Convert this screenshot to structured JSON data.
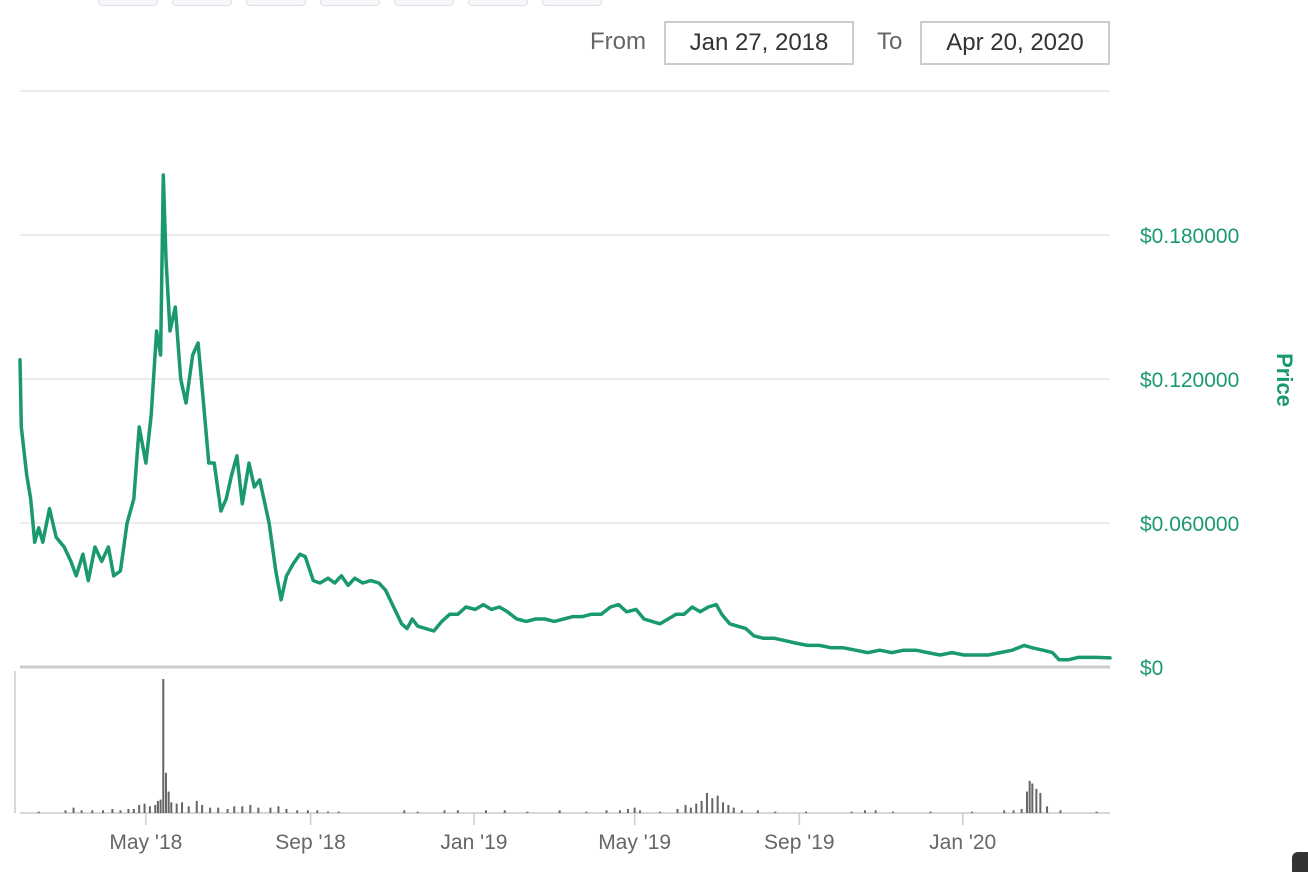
{
  "range_selector": {
    "from_label": "From",
    "from_value": "Jan 27, 2018",
    "to_label": "To",
    "to_value": "Apr 20, 2020"
  },
  "chart_data": {
    "type": "line",
    "title": "",
    "ylabel": "Price",
    "xlabel": "",
    "ylim": [
      0,
      0.24
    ],
    "y_ticks": [
      {
        "value": 0,
        "label": "$0"
      },
      {
        "value": 0.06,
        "label": "$0.060000"
      },
      {
        "value": 0.12,
        "label": "$0.120000"
      },
      {
        "value": 0.18,
        "label": "$0.180000"
      }
    ],
    "x_ticks": [
      {
        "date": "2018-05-01",
        "label": "May '18"
      },
      {
        "date": "2018-09-01",
        "label": "Sep '18"
      },
      {
        "date": "2019-01-01",
        "label": "Jan '19"
      },
      {
        "date": "2019-05-01",
        "label": "May '19"
      },
      {
        "date": "2019-09-01",
        "label": "Sep '19"
      },
      {
        "date": "2020-01-01",
        "label": "Jan '20"
      }
    ],
    "x_range": [
      "2018-01-27",
      "2020-04-20"
    ],
    "grid": true,
    "series_color": "#1a9a6c",
    "volume_color": "#666666",
    "series": [
      {
        "values": [
          [
            "2018-01-27",
            0.128
          ],
          [
            "2018-01-28",
            0.1
          ],
          [
            "2018-02-01",
            0.08
          ],
          [
            "2018-02-04",
            0.07
          ],
          [
            "2018-02-07",
            0.052
          ],
          [
            "2018-02-10",
            0.058
          ],
          [
            "2018-02-13",
            0.052
          ],
          [
            "2018-02-18",
            0.066
          ],
          [
            "2018-02-23",
            0.054
          ],
          [
            "2018-03-01",
            0.05
          ],
          [
            "2018-03-06",
            0.044
          ],
          [
            "2018-03-10",
            0.038
          ],
          [
            "2018-03-15",
            0.047
          ],
          [
            "2018-03-19",
            0.036
          ],
          [
            "2018-03-24",
            0.05
          ],
          [
            "2018-03-29",
            0.044
          ],
          [
            "2018-04-03",
            0.05
          ],
          [
            "2018-04-07",
            0.038
          ],
          [
            "2018-04-12",
            0.04
          ],
          [
            "2018-04-17",
            0.06
          ],
          [
            "2018-04-22",
            0.07
          ],
          [
            "2018-04-26",
            0.1
          ],
          [
            "2018-05-01",
            0.085
          ],
          [
            "2018-05-05",
            0.105
          ],
          [
            "2018-05-09",
            0.14
          ],
          [
            "2018-05-12",
            0.13
          ],
          [
            "2018-05-14",
            0.205
          ],
          [
            "2018-05-16",
            0.17
          ],
          [
            "2018-05-19",
            0.14
          ],
          [
            "2018-05-23",
            0.15
          ],
          [
            "2018-05-27",
            0.12
          ],
          [
            "2018-05-31",
            0.11
          ],
          [
            "2018-06-05",
            0.13
          ],
          [
            "2018-06-09",
            0.135
          ],
          [
            "2018-06-13",
            0.11
          ],
          [
            "2018-06-17",
            0.085
          ],
          [
            "2018-06-21",
            0.085
          ],
          [
            "2018-06-26",
            0.065
          ],
          [
            "2018-06-30",
            0.07
          ],
          [
            "2018-07-04",
            0.08
          ],
          [
            "2018-07-08",
            0.088
          ],
          [
            "2018-07-12",
            0.068
          ],
          [
            "2018-07-17",
            0.085
          ],
          [
            "2018-07-21",
            0.075
          ],
          [
            "2018-07-25",
            0.078
          ],
          [
            "2018-08-01",
            0.06
          ],
          [
            "2018-08-06",
            0.04
          ],
          [
            "2018-08-10",
            0.028
          ],
          [
            "2018-08-14",
            0.038
          ],
          [
            "2018-08-19",
            0.043
          ],
          [
            "2018-08-24",
            0.047
          ],
          [
            "2018-08-28",
            0.046
          ],
          [
            "2018-09-03",
            0.036
          ],
          [
            "2018-09-08",
            0.035
          ],
          [
            "2018-09-14",
            0.037
          ],
          [
            "2018-09-19",
            0.035
          ],
          [
            "2018-09-24",
            0.038
          ],
          [
            "2018-09-29",
            0.034
          ],
          [
            "2018-10-04",
            0.037
          ],
          [
            "2018-10-10",
            0.035
          ],
          [
            "2018-10-16",
            0.036
          ],
          [
            "2018-10-22",
            0.035
          ],
          [
            "2018-10-27",
            0.032
          ],
          [
            "2018-11-02",
            0.025
          ],
          [
            "2018-11-08",
            0.018
          ],
          [
            "2018-11-12",
            0.016
          ],
          [
            "2018-11-16",
            0.02
          ],
          [
            "2018-11-20",
            0.017
          ],
          [
            "2018-11-26",
            0.016
          ],
          [
            "2018-12-02",
            0.015
          ],
          [
            "2018-12-08",
            0.019
          ],
          [
            "2018-12-14",
            0.022
          ],
          [
            "2018-12-20",
            0.022
          ],
          [
            "2018-12-26",
            0.025
          ],
          [
            "2019-01-02",
            0.024
          ],
          [
            "2019-01-08",
            0.026
          ],
          [
            "2019-01-14",
            0.024
          ],
          [
            "2019-01-20",
            0.025
          ],
          [
            "2019-01-26",
            0.023
          ],
          [
            "2019-02-02",
            0.02
          ],
          [
            "2019-02-09",
            0.019
          ],
          [
            "2019-02-16",
            0.02
          ],
          [
            "2019-02-23",
            0.02
          ],
          [
            "2019-03-02",
            0.019
          ],
          [
            "2019-03-09",
            0.02
          ],
          [
            "2019-03-16",
            0.021
          ],
          [
            "2019-03-23",
            0.021
          ],
          [
            "2019-03-30",
            0.022
          ],
          [
            "2019-04-06",
            0.022
          ],
          [
            "2019-04-13",
            0.025
          ],
          [
            "2019-04-19",
            0.026
          ],
          [
            "2019-04-25",
            0.023
          ],
          [
            "2019-05-02",
            0.024
          ],
          [
            "2019-05-08",
            0.02
          ],
          [
            "2019-05-14",
            0.019
          ],
          [
            "2019-05-20",
            0.018
          ],
          [
            "2019-05-26",
            0.02
          ],
          [
            "2019-06-01",
            0.022
          ],
          [
            "2019-06-07",
            0.022
          ],
          [
            "2019-06-13",
            0.025
          ],
          [
            "2019-06-19",
            0.023
          ],
          [
            "2019-06-25",
            0.025
          ],
          [
            "2019-07-01",
            0.026
          ],
          [
            "2019-07-05",
            0.022
          ],
          [
            "2019-07-11",
            0.018
          ],
          [
            "2019-07-17",
            0.017
          ],
          [
            "2019-07-23",
            0.016
          ],
          [
            "2019-07-29",
            0.013
          ],
          [
            "2019-08-05",
            0.012
          ],
          [
            "2019-08-13",
            0.012
          ],
          [
            "2019-08-21",
            0.011
          ],
          [
            "2019-08-29",
            0.01
          ],
          [
            "2019-09-07",
            0.009
          ],
          [
            "2019-09-16",
            0.009
          ],
          [
            "2019-09-25",
            0.008
          ],
          [
            "2019-10-04",
            0.008
          ],
          [
            "2019-10-13",
            0.007
          ],
          [
            "2019-10-22",
            0.006
          ],
          [
            "2019-10-31",
            0.007
          ],
          [
            "2019-11-09",
            0.006
          ],
          [
            "2019-11-18",
            0.007
          ],
          [
            "2019-11-27",
            0.007
          ],
          [
            "2019-12-06",
            0.006
          ],
          [
            "2019-12-15",
            0.005
          ],
          [
            "2019-12-24",
            0.006
          ],
          [
            "2020-01-02",
            0.005
          ],
          [
            "2020-01-11",
            0.005
          ],
          [
            "2020-01-20",
            0.005
          ],
          [
            "2020-01-29",
            0.006
          ],
          [
            "2020-02-07",
            0.007
          ],
          [
            "2020-02-16",
            0.009
          ],
          [
            "2020-02-22",
            0.008
          ],
          [
            "2020-03-01",
            0.007
          ],
          [
            "2020-03-08",
            0.006
          ],
          [
            "2020-03-13",
            0.003
          ],
          [
            "2020-03-20",
            0.003
          ],
          [
            "2020-03-27",
            0.004
          ],
          [
            "2020-04-03",
            0.004
          ],
          [
            "2020-04-10",
            0.004
          ],
          [
            "2020-04-20",
            0.0038
          ]
        ]
      }
    ],
    "volume": [
      [
        "2018-02-10",
        0.01
      ],
      [
        "2018-03-02",
        0.02
      ],
      [
        "2018-03-08",
        0.04
      ],
      [
        "2018-03-14",
        0.02
      ],
      [
        "2018-03-22",
        0.02
      ],
      [
        "2018-03-30",
        0.02
      ],
      [
        "2018-04-06",
        0.03
      ],
      [
        "2018-04-12",
        0.02
      ],
      [
        "2018-04-18",
        0.03
      ],
      [
        "2018-04-22",
        0.03
      ],
      [
        "2018-04-26",
        0.06
      ],
      [
        "2018-04-30",
        0.07
      ],
      [
        "2018-05-04",
        0.05
      ],
      [
        "2018-05-08",
        0.06
      ],
      [
        "2018-05-10",
        0.09
      ],
      [
        "2018-05-12",
        0.1
      ],
      [
        "2018-05-14",
        1.0
      ],
      [
        "2018-05-16",
        0.3
      ],
      [
        "2018-05-18",
        0.16
      ],
      [
        "2018-05-20",
        0.08
      ],
      [
        "2018-05-24",
        0.07
      ],
      [
        "2018-05-28",
        0.08
      ],
      [
        "2018-06-02",
        0.05
      ],
      [
        "2018-06-08",
        0.09
      ],
      [
        "2018-06-12",
        0.06
      ],
      [
        "2018-06-18",
        0.04
      ],
      [
        "2018-06-24",
        0.04
      ],
      [
        "2018-07-01",
        0.03
      ],
      [
        "2018-07-06",
        0.05
      ],
      [
        "2018-07-12",
        0.05
      ],
      [
        "2018-07-18",
        0.06
      ],
      [
        "2018-07-24",
        0.04
      ],
      [
        "2018-08-02",
        0.04
      ],
      [
        "2018-08-08",
        0.05
      ],
      [
        "2018-08-14",
        0.03
      ],
      [
        "2018-08-22",
        0.02
      ],
      [
        "2018-08-30",
        0.02
      ],
      [
        "2018-09-06",
        0.02
      ],
      [
        "2018-09-14",
        0.01
      ],
      [
        "2018-09-22",
        0.01
      ],
      [
        "2018-11-10",
        0.02
      ],
      [
        "2018-11-20",
        0.01
      ],
      [
        "2018-12-10",
        0.02
      ],
      [
        "2018-12-20",
        0.02
      ],
      [
        "2019-01-10",
        0.02
      ],
      [
        "2019-01-24",
        0.02
      ],
      [
        "2019-02-10",
        0.01
      ],
      [
        "2019-03-06",
        0.02
      ],
      [
        "2019-03-26",
        0.01
      ],
      [
        "2019-04-10",
        0.02
      ],
      [
        "2019-04-20",
        0.02
      ],
      [
        "2019-04-26",
        0.03
      ],
      [
        "2019-05-01",
        0.04
      ],
      [
        "2019-05-05",
        0.02
      ],
      [
        "2019-05-20",
        0.01
      ],
      [
        "2019-06-02",
        0.03
      ],
      [
        "2019-06-08",
        0.06
      ],
      [
        "2019-06-12",
        0.04
      ],
      [
        "2019-06-16",
        0.07
      ],
      [
        "2019-06-20",
        0.09
      ],
      [
        "2019-06-24",
        0.15
      ],
      [
        "2019-06-28",
        0.11
      ],
      [
        "2019-07-02",
        0.13
      ],
      [
        "2019-07-06",
        0.08
      ],
      [
        "2019-07-10",
        0.06
      ],
      [
        "2019-07-14",
        0.04
      ],
      [
        "2019-07-20",
        0.02
      ],
      [
        "2019-08-01",
        0.02
      ],
      [
        "2019-08-14",
        0.01
      ],
      [
        "2019-09-06",
        0.01
      ],
      [
        "2019-10-10",
        0.01
      ],
      [
        "2019-10-20",
        0.02
      ],
      [
        "2019-10-28",
        0.02
      ],
      [
        "2019-11-10",
        0.01
      ],
      [
        "2019-12-08",
        0.01
      ],
      [
        "2020-01-08",
        0.01
      ],
      [
        "2020-02-01",
        0.02
      ],
      [
        "2020-02-08",
        0.02
      ],
      [
        "2020-02-14",
        0.03
      ],
      [
        "2020-02-18",
        0.16
      ],
      [
        "2020-02-20",
        0.24
      ],
      [
        "2020-02-22",
        0.22
      ],
      [
        "2020-02-25",
        0.18
      ],
      [
        "2020-02-28",
        0.15
      ],
      [
        "2020-03-04",
        0.05
      ],
      [
        "2020-03-14",
        0.02
      ],
      [
        "2020-04-10",
        0.01
      ]
    ]
  }
}
